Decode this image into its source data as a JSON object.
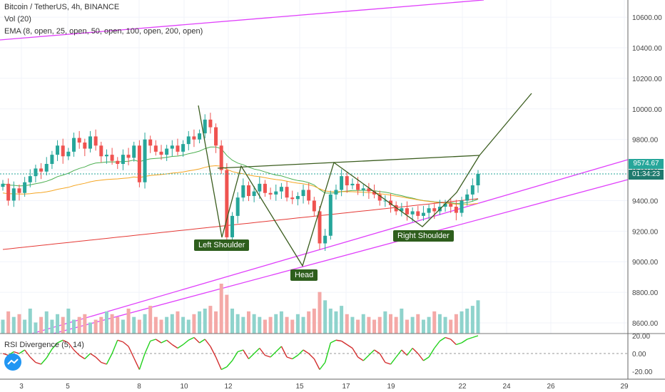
{
  "header": {
    "symbol_line": "Bitcoin / TetherUS, 4h, BINANCE",
    "vol_line": "Vol (20)",
    "ema_line": "EMA (8, open, 25, open, 50, open, 100, open, 200, open)"
  },
  "rsi_label": "RSI Divergence (5, 14)",
  "price_tags": {
    "last_price": "9574.67",
    "countdown": "01:34:23"
  },
  "colors": {
    "up": "#26a69a",
    "down": "#ef5350",
    "pattern": "#3b5d1f",
    "trendline": "#e040fb",
    "rsi_up": "#22d11c",
    "rsi_down": "#d32f2f",
    "ema_green": "#4caf50",
    "ema_orange": "#f5a623",
    "ema_red": "#e53935",
    "last_price_tag": "#26a69a",
    "countdown_tag": "#1f7a6e"
  },
  "pattern_labels": {
    "left_shoulder": "Left Shoulder",
    "head": "Head",
    "right_shoulder": "Right Shoulder"
  },
  "chart_data": [
    {
      "type": "candlestick",
      "title": "Bitcoin / TetherUS, 4h, BINANCE",
      "y_axis": {
        "range": [
          8500,
          10680
        ],
        "ticks": [
          10600,
          10400,
          10200,
          10000,
          9800,
          9600,
          9400,
          9200,
          9000,
          8800,
          8600
        ],
        "tick_labels": [
          "10600.00",
          "10400.00",
          "10200.00",
          "10000.00",
          "9800.00",
          "9600.00",
          "9400.00",
          "9200.00",
          "9000.00",
          "8800.00",
          "8600.00"
        ]
      },
      "x_axis": {
        "tick_labels": [
          "3",
          "5",
          "8",
          "10",
          "12",
          "15",
          "17",
          "19",
          "22",
          "24",
          "26",
          "29"
        ]
      },
      "last_price": 9574.67,
      "candles_close": [
        9510,
        9400,
        9480,
        9450,
        9520,
        9560,
        9610,
        9590,
        9640,
        9700,
        9760,
        9690,
        9720,
        9810,
        9780,
        9740,
        9820,
        9760,
        9690,
        9700,
        9660,
        9640,
        9700,
        9680,
        9760,
        9520,
        9800,
        9760,
        9720,
        9700,
        9740,
        9760,
        9720,
        9770,
        9820,
        9800,
        9840,
        9930,
        9880,
        9760,
        9600,
        9160,
        9300,
        9420,
        9500,
        9430,
        9460,
        9510,
        9450,
        9440,
        9460,
        9490,
        9420,
        9410,
        9430,
        9470,
        9400,
        9330,
        9120,
        9170,
        9440,
        9470,
        9560,
        9500,
        9510,
        9470,
        9480,
        9460,
        9440,
        9400,
        9400,
        9370,
        9330,
        9350,
        9310,
        9330,
        9300,
        9320,
        9350,
        9330,
        9360,
        9380,
        9360,
        9320,
        9400,
        9440,
        9500,
        9574.67
      ],
      "pattern_points": [
        {
          "name": "Left Shoulder",
          "price": 9100
        },
        {
          "name": "Head",
          "price": 8910
        },
        {
          "name": "Right Shoulder",
          "price": 9150
        }
      ],
      "neckline": [
        9560,
        9630
      ],
      "projection_target": 10030,
      "ema_lines": [
        "EMA 8",
        "EMA 25",
        "EMA 50",
        "EMA 100",
        "EMA 200"
      ]
    },
    {
      "type": "bar",
      "title": "Vol (20)",
      "values": [
        5,
        8,
        6,
        7,
        5,
        9,
        4,
        6,
        8,
        5,
        7,
        6,
        9,
        5,
        6,
        7,
        4,
        5,
        6,
        8,
        7,
        6,
        5,
        9,
        6,
        5,
        7,
        10,
        6,
        5,
        6,
        7,
        8,
        6,
        5,
        7,
        8,
        9,
        10,
        8,
        18,
        14,
        9,
        7,
        6,
        8,
        7,
        6,
        5,
        6,
        7,
        8,
        6,
        5,
        7,
        6,
        8,
        9,
        15,
        12,
        9,
        8,
        10,
        7,
        6,
        5,
        7,
        6,
        5,
        6,
        8,
        7,
        6,
        9,
        5,
        6,
        7,
        5,
        6,
        8,
        7,
        6,
        5,
        7,
        8,
        9,
        10,
        12
      ]
    },
    {
      "type": "line",
      "title": "RSI Divergence (5, 14)",
      "y_axis": {
        "ticks": [
          20,
          0,
          -20
        ],
        "tick_labels": [
          "20.00",
          "0.00",
          "-20.00"
        ]
      },
      "values": [
        0,
        -2,
        2,
        0,
        4,
        -4,
        -10,
        -12,
        -5,
        5,
        12,
        15,
        12,
        4,
        -2,
        -6,
        0,
        -4,
        -10,
        -12,
        0,
        15,
        13,
        8,
        -5,
        -18,
        0,
        14,
        16,
        12,
        15,
        10,
        6,
        10,
        15,
        18,
        12,
        16,
        8,
        -4,
        -18,
        -15,
        -8,
        2,
        4,
        -6,
        0,
        6,
        -2,
        -4,
        2,
        8,
        -4,
        -6,
        -2,
        4,
        0,
        -6,
        -18,
        -10,
        12,
        15,
        14,
        10,
        6,
        -4,
        -8,
        -2,
        4,
        0,
        -10,
        -12,
        -4,
        4,
        -2,
        6,
        0,
        -8,
        -4,
        6,
        14,
        18,
        16,
        10,
        12,
        16,
        18,
        20
      ]
    }
  ]
}
